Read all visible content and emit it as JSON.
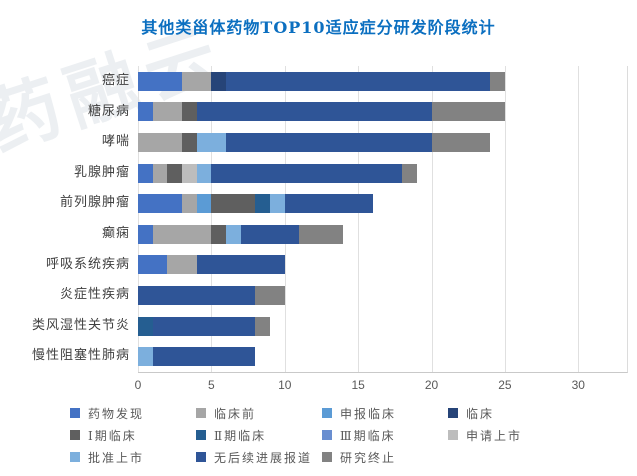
{
  "title": "其他类甾体药物TOP10适应症分研发阶段统计",
  "watermark": "药融云",
  "colors": {
    "title_accent": "#0B6FC0",
    "gridline": "#E0E0E0",
    "axis_line": "#C9C9C9",
    "label_text": "#595959"
  },
  "chart_data": {
    "type": "bar",
    "orientation": "horizontal",
    "stacked": true,
    "title": "其他类甾体药物TOP10适应症分研发阶段统计",
    "xlabel": "",
    "ylabel": "",
    "xlim": [
      0,
      30
    ],
    "xticks": [
      0,
      5,
      10,
      15,
      20,
      25,
      30
    ],
    "grid": true,
    "legend_position": "bottom",
    "categories": [
      "癌症",
      "糖尿病",
      "哮喘",
      "乳腺肿瘤",
      "前列腺肿瘤",
      "癫痫",
      "呼吸系统疾病",
      "炎症性疾病",
      "类风湿性关节炎",
      "慢性阻塞性肺病"
    ],
    "series": [
      {
        "name": "药物发现",
        "color": "#4472C4",
        "values": [
          3,
          1,
          0,
          1,
          3,
          1,
          2,
          0,
          0,
          0
        ]
      },
      {
        "name": "临床前",
        "color": "#A6A6A6",
        "values": [
          2,
          2,
          3,
          1,
          1,
          4,
          2,
          0,
          0,
          0
        ]
      },
      {
        "name": "申报临床",
        "color": "#5B9BD5",
        "values": [
          0,
          0,
          0,
          0,
          1,
          0,
          0,
          0,
          0,
          0
        ]
      },
      {
        "name": "临床",
        "color": "#264478",
        "values": [
          1,
          0,
          0,
          0,
          0,
          0,
          0,
          0,
          0,
          0
        ]
      },
      {
        "name": "Ⅰ期临床",
        "color": "#5F5F5F",
        "values": [
          0,
          1,
          1,
          1,
          3,
          1,
          0,
          0,
          0,
          0
        ]
      },
      {
        "name": "Ⅱ期临床",
        "color": "#255E91",
        "values": [
          0,
          0,
          0,
          0,
          1,
          0,
          0,
          0,
          1,
          0
        ]
      },
      {
        "name": "Ⅲ期临床",
        "color": "#698ED0",
        "values": [
          0,
          0,
          0,
          0,
          0,
          0,
          0,
          0,
          0,
          0
        ]
      },
      {
        "name": "申请上市",
        "color": "#BDBDBD",
        "values": [
          0,
          0,
          0,
          1,
          0,
          0,
          0,
          0,
          0,
          0
        ]
      },
      {
        "name": "批准上市",
        "color": "#7CAFDD",
        "values": [
          0,
          0,
          2,
          1,
          1,
          1,
          0,
          0,
          0,
          1
        ]
      },
      {
        "name": "无后续进展报道",
        "color": "#2F5597",
        "values": [
          18,
          16,
          14,
          13,
          6,
          4,
          6,
          8,
          7,
          7
        ]
      },
      {
        "name": "研究终止",
        "color": "#828282",
        "values": [
          1,
          5,
          4,
          1,
          0,
          3,
          0,
          2,
          1,
          0
        ]
      }
    ],
    "totals": [
      25,
      25,
      24,
      19,
      16,
      14,
      10,
      10,
      9,
      8
    ],
    "legend_rows": [
      [
        0,
        1,
        2,
        3
      ],
      [
        4,
        5,
        6,
        7
      ],
      [
        8,
        9,
        10
      ]
    ]
  }
}
